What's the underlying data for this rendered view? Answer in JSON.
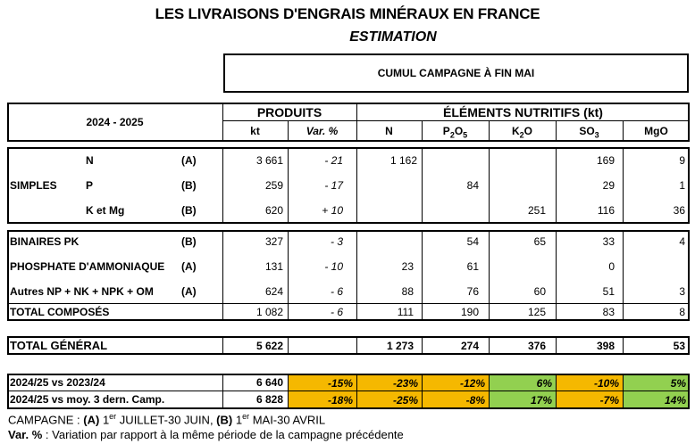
{
  "title": "LES LIVRAISONS D'ENGRAIS MINÉRAUX EN FRANCE",
  "subtitle": "ESTIMATION",
  "cumul_label": "CUMUL CAMPAGNE À FIN MAI",
  "header": {
    "period": "2024 - 2025",
    "produits": "PRODUITS",
    "elements": "ÉLÉMENTS NUTRITIFS (kt)",
    "kt": "kt",
    "var": "Var. %",
    "n": "N",
    "p2o5": {
      "base": "P",
      "sub": "2",
      "rest": "O",
      "sub2": "5"
    },
    "k2o": {
      "base": "K",
      "sub": "2",
      "rest": "O"
    },
    "so3": {
      "base": "SO",
      "sub": "3"
    },
    "mgo": "MgO"
  },
  "simples": {
    "group_label": "SIMPLES",
    "rows": [
      {
        "label": "N",
        "code": "(A)",
        "kt": "3 661",
        "var": "- 21",
        "n": "1 162",
        "p2o5": "",
        "k2o": "",
        "so3": "169",
        "mgo": "9"
      },
      {
        "label": "P",
        "code": "(B)",
        "kt": "259",
        "var": "- 17",
        "n": "",
        "p2o5": "84",
        "k2o": "",
        "so3": "29",
        "mgo": "1"
      },
      {
        "label": "K et Mg",
        "code": "(B)",
        "kt": "620",
        "var": "+ 10",
        "n": "",
        "p2o5": "",
        "k2o": "251",
        "so3": "116",
        "mgo": "36"
      }
    ]
  },
  "composes": {
    "rows": [
      {
        "label": "BINAIRES PK",
        "code": "(B)",
        "kt": "327",
        "var": "- 3",
        "n": "",
        "p2o5": "54",
        "k2o": "65",
        "so3": "33",
        "mgo": "4"
      },
      {
        "label": "PHOSPHATE D'AMMONIAQUE",
        "code": "(A)",
        "kt": "131",
        "var": "- 10",
        "n": "23",
        "p2o5": "61",
        "k2o": "",
        "so3": "0",
        "mgo": ""
      },
      {
        "label": "Autres NP + NK + NPK + OM",
        "code": "(A)",
        "kt": "624",
        "var": "- 6",
        "n": "88",
        "p2o5": "76",
        "k2o": "60",
        "so3": "51",
        "mgo": "3"
      }
    ],
    "total": {
      "label": "TOTAL COMPOSÉS",
      "kt": "1 082",
      "var": "- 6",
      "n": "111",
      "p2o5": "190",
      "k2o": "125",
      "so3": "83",
      "mgo": "8"
    }
  },
  "total_general": {
    "label": "TOTAL GÉNÉRAL",
    "kt": "5 622",
    "n": "1 273",
    "p2o5": "274",
    "k2o": "376",
    "so3": "398",
    "mgo": "53"
  },
  "comparisons": [
    {
      "label": "2024/25 vs 2023/24",
      "kt": "6 640",
      "var": "-15%",
      "n": "-23%",
      "p2o5": "-12%",
      "k2o": "6%",
      "so3": "-10%",
      "mgo": "5%",
      "colors": {
        "var": "#f5b800",
        "n": "#f5b800",
        "p2o5": "#f5b800",
        "k2o": "#92d050",
        "so3": "#f5b800",
        "mgo": "#92d050"
      }
    },
    {
      "label": "2024/25 vs moy. 3 dern. Camp.",
      "kt": "6 828",
      "var": "-18%",
      "n": "-25%",
      "p2o5": "-8%",
      "k2o": "17%",
      "so3": "-7%",
      "mgo": "14%",
      "colors": {
        "var": "#f5b800",
        "n": "#f5b800",
        "p2o5": "#f5b800",
        "k2o": "#92d050",
        "so3": "#f5b800",
        "mgo": "#92d050"
      }
    }
  ],
  "footer": {
    "line1_prefix": "CAMPAGNE : ",
    "a": "(A)",
    "a_text_1": " 1",
    "a_sup": "er",
    "a_text_2": " JUILLET-30 JUIN, ",
    "b": "(B)",
    "b_text_1": " 1",
    "b_sup": "er",
    "b_text_2": " MAI-30 AVRIL",
    "var_label": "Var. %",
    "var_text": " : Variation par rapport à la même période de la campagne précédente"
  }
}
